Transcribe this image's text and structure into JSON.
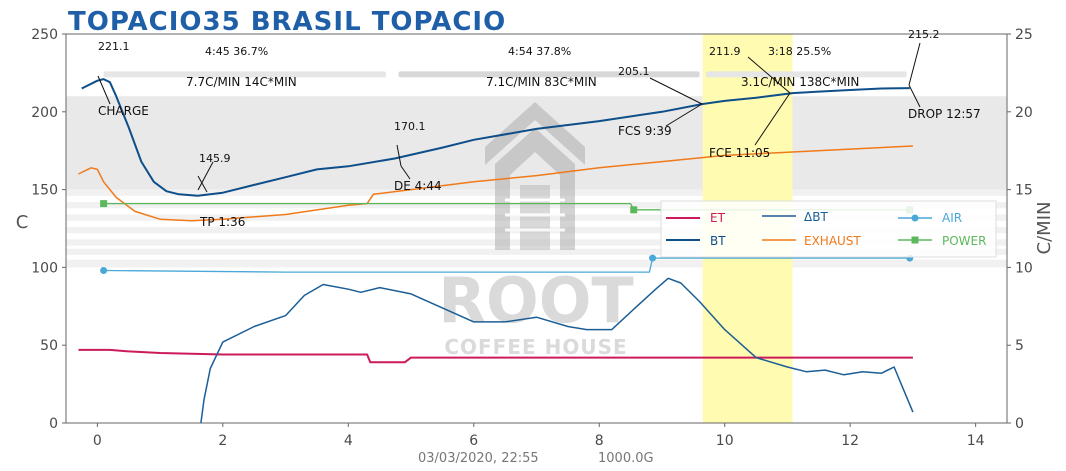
{
  "title": "TOPACIO35 BRASIL TOPACIO",
  "footer": {
    "datetime": "03/03/2020, 22:55",
    "weight": "1000.0G"
  },
  "watermark": {
    "line1": "ROOT",
    "line2": "COFFEE HOUSE"
  },
  "phase_stats": {
    "drying": {
      "time_pct": "4:45   36.7%",
      "rates": "7.7C/MIN   14C*MIN"
    },
    "maillard": {
      "time_pct": "4:54   37.8%",
      "rates": "7.1C/MIN   83C*MIN"
    },
    "development": {
      "time_pct": "3:18   25.5%",
      "rates": "3.1C/MIN   138C*MIN"
    }
  },
  "annotations": {
    "charge_temp": "221.1",
    "charge": "CHARGE",
    "tp_temp": "145.9",
    "tp": "TP 1:36",
    "de_temp": "170.1",
    "de": "DE 4:44",
    "fcs_temp": "205.1",
    "fcs": "FCS 9:39",
    "fce_temp": "211.9",
    "fce": "FCE 11:05",
    "drop_temp": "215.2",
    "drop": "DROP 12:57"
  },
  "legend": {
    "et": "ET",
    "bt": "BT",
    "dbt": "ΔBT",
    "exhaust": "EXHAUST",
    "air": "AIR",
    "power": "POWER"
  },
  "colors": {
    "et": "#cc1a5a",
    "bt": "#0e4f8a",
    "dbt": "#1b5e96",
    "exhaust": "#f07a1a",
    "air": "#4aa8d8",
    "power": "#5cb85c",
    "development_band": "#fffbb0",
    "title": "#1f5fa8"
  },
  "chart_data": {
    "type": "line",
    "title": "TOPACIO35 BRASIL TOPACIO",
    "xlabel": "",
    "ylabel": "C",
    "y2label": "C/MIN",
    "xlim": [
      -0.5,
      14.5
    ],
    "ylim": [
      0,
      250
    ],
    "y2lim": [
      0,
      25
    ],
    "xticks": [
      0,
      2,
      4,
      6,
      8,
      10,
      12,
      14
    ],
    "yticks": [
      0,
      50,
      100,
      150,
      200,
      250
    ],
    "y2ticks": [
      0,
      5,
      10,
      15,
      20,
      25
    ],
    "development_band": [
      9.65,
      11.08
    ],
    "legend_position": "right",
    "series": [
      {
        "key": "bt",
        "name": "BT",
        "axis": "left",
        "x": [
          -0.25,
          0.0,
          0.1,
          0.2,
          0.3,
          0.5,
          0.7,
          0.9,
          1.1,
          1.3,
          1.6,
          2.0,
          2.5,
          3.0,
          3.5,
          4.0,
          4.74,
          5.5,
          6.0,
          7.0,
          8.0,
          9.0,
          9.65,
          10.0,
          10.5,
          11.08,
          11.5,
          12.0,
          12.5,
          12.95
        ],
        "y": [
          215,
          220,
          221,
          219,
          210,
          190,
          168,
          155,
          149,
          147,
          146,
          148,
          153,
          158,
          163,
          165,
          170,
          177,
          182,
          189,
          194,
          200,
          205,
          207,
          209,
          212,
          213,
          214,
          215,
          215.2
        ]
      },
      {
        "key": "et",
        "name": "ET",
        "axis": "left",
        "x": [
          -0.3,
          0.0,
          0.2,
          0.5,
          1.0,
          2.0,
          3.0,
          4.0,
          4.3,
          4.35,
          4.9,
          5.0,
          6.0,
          8.0,
          10.0,
          12.0,
          13.0
        ],
        "y": [
          47,
          47,
          47,
          46,
          45,
          44,
          44,
          44,
          44,
          39,
          39,
          42,
          42,
          42,
          42,
          42,
          42
        ]
      },
      {
        "key": "exhaust",
        "name": "EXHAUST",
        "axis": "left",
        "x": [
          -0.3,
          -0.1,
          0.0,
          0.1,
          0.3,
          0.6,
          1.0,
          1.5,
          2.0,
          3.0,
          4.0,
          4.3,
          4.4,
          5.0,
          6.0,
          7.0,
          8.0,
          9.0,
          10.0,
          11.0,
          12.0,
          13.0
        ],
        "y": [
          160,
          164,
          163,
          155,
          145,
          136,
          131,
          130,
          131,
          134,
          140,
          141,
          147,
          150,
          155,
          159,
          164,
          168,
          172,
          174,
          176,
          178
        ]
      },
      {
        "key": "air",
        "name": "AIR",
        "axis": "left",
        "x": [
          0.1,
          3.0,
          6.0,
          8.8,
          8.85,
          12.0,
          12.95
        ],
        "y": [
          98,
          97,
          97,
          97,
          106,
          106,
          106
        ],
        "markers": [
          [
            0.1,
            98
          ],
          [
            8.85,
            106
          ],
          [
            12.95,
            106
          ]
        ]
      },
      {
        "key": "power",
        "name": "POWER",
        "axis": "left",
        "x": [
          0.1,
          4.0,
          8.5,
          8.55,
          12.95
        ],
        "y": [
          141,
          141,
          141,
          137,
          137
        ],
        "markers": [
          [
            0.1,
            141
          ],
          [
            8.55,
            137
          ],
          [
            12.95,
            137
          ]
        ]
      },
      {
        "key": "dbt",
        "name": "ΔBT",
        "axis": "right",
        "x": [
          1.65,
          1.7,
          1.8,
          2.0,
          2.5,
          3.0,
          3.3,
          3.6,
          4.0,
          4.2,
          4.5,
          5.0,
          5.5,
          6.0,
          6.5,
          7.0,
          7.5,
          7.8,
          8.2,
          8.6,
          8.9,
          9.1,
          9.3,
          9.6,
          10.0,
          10.5,
          11.0,
          11.3,
          11.6,
          11.9,
          12.2,
          12.5,
          12.7,
          13.0
        ],
        "y": [
          0,
          1.5,
          3.5,
          5.2,
          6.2,
          6.9,
          8.2,
          8.9,
          8.6,
          8.4,
          8.7,
          8.3,
          7.4,
          6.5,
          6.5,
          6.8,
          6.2,
          6.0,
          6.0,
          7.5,
          8.6,
          9.3,
          9.0,
          7.8,
          6.0,
          4.2,
          3.6,
          3.3,
          3.4,
          3.1,
          3.3,
          3.2,
          3.6,
          0.7
        ]
      }
    ]
  }
}
